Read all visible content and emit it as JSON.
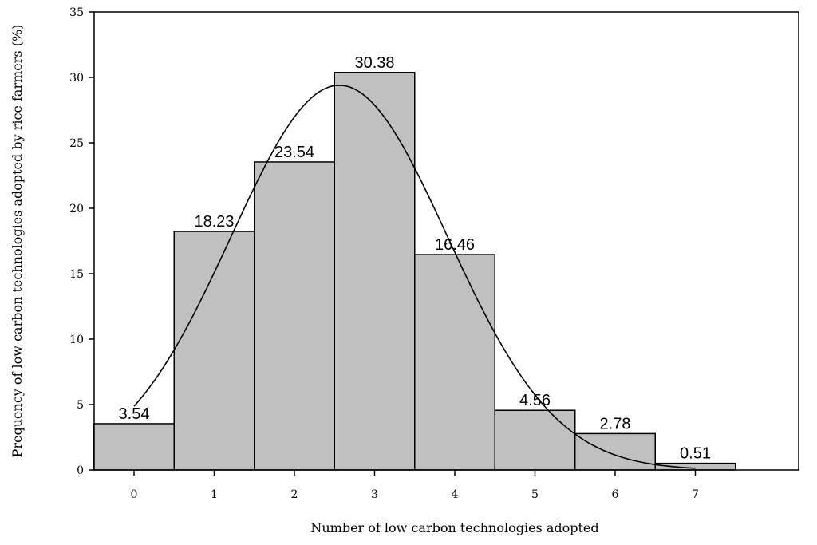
{
  "chart_data": {
    "type": "bar",
    "title": "",
    "xlabel": "Number of low carbon technologies adopted",
    "ylabel": "Prequency of  low carbon technologies adopted by rice farmers (%)",
    "categories": [
      "0",
      "1",
      "2",
      "3",
      "4",
      "5",
      "6",
      "7"
    ],
    "values": [
      3.54,
      18.23,
      23.54,
      30.38,
      16.46,
      4.56,
      2.78,
      0.51
    ],
    "value_labels": [
      "3.54",
      "18.23",
      "23.54",
      "30.38",
      "16.46",
      "4.56",
      "2.78",
      "0.51"
    ],
    "ylim": [
      0,
      35
    ],
    "yticks": [
      "0",
      "5",
      "10",
      "15",
      "20",
      "25",
      "30",
      "35"
    ],
    "xlim": [
      -0.5,
      7.5
    ],
    "grid": false,
    "normal_curve": {
      "mean": 2.56,
      "sd": 1.35,
      "peak": 29.4,
      "x_start": 0,
      "x_end": 7
    }
  }
}
